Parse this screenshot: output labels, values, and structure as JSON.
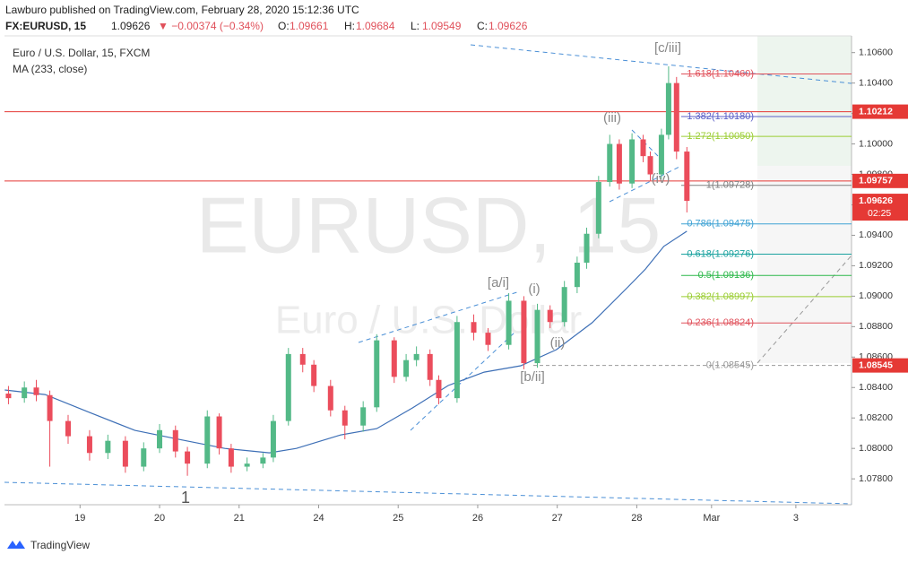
{
  "chart_data": {
    "type": "candlestick",
    "header": {
      "publisher": "Lawburo published on TradingView.com, February 28, 2020 15:12:36 UTC",
      "symbol": "FX:EURUSD, 15",
      "price": "1.09626",
      "change": "▼ −0.00374 (−0.34%)",
      "ohlc": [
        {
          "label": "O:",
          "value": "1.09661"
        },
        {
          "label": "H:",
          "value": "1.09684"
        },
        {
          "label": "L:",
          "value": "1.09549"
        },
        {
          "label": "C:",
          "value": "1.09626"
        }
      ]
    },
    "legend": [
      "Euro / U.S. Dollar, 15, FXCM",
      "MA (233, close)"
    ],
    "watermark": [
      "EURUSD, 15",
      "Euro / U.S. Dollar"
    ],
    "footer": "TradingView",
    "up_color": "#53b987",
    "down_color": "#eb4d5c",
    "x": [
      0.1,
      0.3,
      0.45,
      0.62,
      0.85,
      1.12,
      1.35,
      1.57,
      1.8,
      2.0,
      2.2,
      2.35,
      2.6,
      2.75,
      2.9,
      3.1,
      3.3,
      3.43,
      3.62,
      3.8,
      3.94,
      4.15,
      4.33,
      4.56,
      4.73,
      4.95,
      5.1,
      5.23,
      5.4,
      5.51,
      5.74,
      5.95,
      6.13,
      6.39,
      6.58,
      6.75,
      6.91,
      7.09,
      7.25,
      7.37,
      7.52,
      7.66,
      7.78,
      7.94,
      8.08,
      8.17,
      8.31,
      8.4,
      8.5,
      8.63
    ],
    "open": [
      1.0836,
      1.0833,
      1.084,
      1.0835,
      1.0818,
      1.0808,
      1.0797,
      1.0805,
      1.0788,
      1.08,
      1.0812,
      1.0798,
      1.079,
      1.0821,
      1.08,
      1.0788,
      1.079,
      1.0794,
      1.0818,
      1.0862,
      1.0855,
      1.0841,
      1.0825,
      1.0815,
      1.0827,
      1.0871,
      1.0847,
      1.0858,
      1.0862,
      1.0845,
      1.0833,
      1.0883,
      1.0876,
      1.0868,
      1.0897,
      1.0856,
      1.0891,
      1.0883,
      1.0906,
      1.0922,
      1.0941,
      1.0975,
      1.1,
      1.0974,
      1.1003,
      1.0992,
      1.098,
      1.1006,
      1.104,
      1.0995
    ],
    "high": [
      1.0841,
      1.0844,
      1.0845,
      1.0838,
      1.0822,
      1.0812,
      1.0809,
      1.0808,
      1.0804,
      1.0816,
      1.0815,
      1.0801,
      1.0825,
      1.0823,
      1.0803,
      1.0794,
      1.0797,
      1.0822,
      1.0866,
      1.0866,
      1.0858,
      1.0845,
      1.0828,
      1.0831,
      1.0875,
      1.0873,
      1.0862,
      1.0867,
      1.0865,
      1.0848,
      1.0887,
      1.0888,
      1.0879,
      1.0902,
      1.09,
      1.0895,
      1.0894,
      1.091,
      1.0926,
      1.0945,
      1.0979,
      1.1006,
      1.1003,
      1.1007,
      1.1006,
      1.0995,
      1.101,
      1.1051,
      1.1044,
      1.0998
    ],
    "low": [
      1.0829,
      1.083,
      1.0831,
      1.0788,
      1.0803,
      1.0792,
      1.0793,
      1.0784,
      1.0785,
      1.0797,
      1.0794,
      1.0782,
      1.0787,
      1.0796,
      1.0784,
      1.0785,
      1.0787,
      1.0791,
      1.0815,
      1.085,
      1.0837,
      1.0821,
      1.0806,
      1.0811,
      1.0824,
      1.0843,
      1.0844,
      1.0854,
      1.0841,
      1.0829,
      1.083,
      1.0871,
      1.0864,
      1.0865,
      1.0852,
      1.0853,
      1.0879,
      1.088,
      1.0902,
      1.0918,
      1.0938,
      1.0972,
      1.097,
      1.0971,
      1.0988,
      1.0976,
      1.0977,
      1.1003,
      1.099,
      1.0955
    ],
    "close": [
      1.0833,
      1.084,
      1.0835,
      1.0818,
      1.0808,
      1.0797,
      1.0805,
      1.0788,
      1.08,
      1.0812,
      1.0798,
      1.079,
      1.0821,
      1.08,
      1.0788,
      1.079,
      1.0794,
      1.0818,
      1.0862,
      1.0855,
      1.0841,
      1.0825,
      1.0815,
      1.0827,
      1.0871,
      1.0847,
      1.0858,
      1.0862,
      1.0845,
      1.0833,
      1.0883,
      1.0876,
      1.0868,
      1.0897,
      1.0856,
      1.0891,
      1.0883,
      1.0906,
      1.0922,
      1.0941,
      1.0975,
      1.1,
      1.0974,
      1.1003,
      1.0992,
      1.098,
      1.1006,
      1.104,
      1.0995,
      1.09626
    ],
    "ma": {
      "color": "#3d6fb6",
      "x": [
        0.053,
        0.56,
        1.12,
        1.69,
        2.25,
        2.82,
        3.38,
        3.72,
        4.28,
        4.73,
        5.18,
        5.63,
        6.08,
        6.54,
        6.99,
        7.44,
        7.89,
        8.11,
        8.34,
        8.63
      ],
      "values": [
        1.08384,
        1.08354,
        1.08236,
        1.08118,
        1.08059,
        1.08,
        1.07971,
        1.08,
        1.08089,
        1.0813,
        1.08266,
        1.08413,
        1.08501,
        1.08543,
        1.08649,
        1.08826,
        1.09061,
        1.09179,
        1.09327,
        1.09427
      ]
    },
    "fib_levels": [
      {
        "label": "1.618(1.10460)",
        "value": 1.1046,
        "color": "#e0505a"
      },
      {
        "label": "1.382(1.10180)",
        "value": 1.1018,
        "color": "#5b5fc7"
      },
      {
        "label": "1.272(1.10050)",
        "value": 1.1005,
        "color": "#9acd32"
      },
      {
        "label": "1(1.09728)",
        "value": 1.09728,
        "color": "#808080"
      },
      {
        "label": "0.786(1.09475)",
        "value": 1.09475,
        "color": "#3fa2d4"
      },
      {
        "label": "0.618(1.09276)",
        "value": 1.09276,
        "color": "#1ca3a0"
      },
      {
        "label": "0.5(1.09136)",
        "value": 1.09136,
        "color": "#2db84a"
      },
      {
        "label": "0.382(1.08997)",
        "value": 1.08997,
        "color": "#9acd32"
      },
      {
        "label": "0.236(1.08824)",
        "value": 1.08824,
        "color": "#e0505a"
      },
      {
        "label": "0(1.08545)",
        "value": 1.08545,
        "color": "#999999"
      }
    ],
    "price_lines": [
      {
        "value": 1.10212,
        "label": "1.10212"
      },
      {
        "value": 1.09757,
        "label": "1.09757"
      }
    ],
    "price_tags": [
      {
        "value": 1.09626,
        "label": "1.09626"
      },
      {
        "value": 1.08545,
        "label": "1.08545"
      }
    ],
    "countdown": "02:25",
    "annotations": [
      "[c/iii]",
      "(iii)",
      "(iv)",
      "[a/i]",
      "(i)",
      "(ii)",
      "[b/ii]",
      "1"
    ],
    "xlim": [
      0.05,
      10.7
    ],
    "ylim": [
      1.0763,
      1.1071
    ],
    "xticks": [
      {
        "value": 1,
        "label": "19"
      },
      {
        "value": 2,
        "label": "20"
      },
      {
        "value": 3,
        "label": "21"
      },
      {
        "value": 4,
        "label": "24"
      },
      {
        "value": 5,
        "label": "25"
      },
      {
        "value": 6,
        "label": "26"
      },
      {
        "value": 7,
        "label": "27"
      },
      {
        "value": 8,
        "label": "28"
      },
      {
        "value": 8.94,
        "label": "Mar"
      },
      {
        "value": 10,
        "label": "3"
      }
    ],
    "yticks": [
      {
        "value": 1.078,
        "label": "1.07800"
      },
      {
        "value": 1.08,
        "label": "1.08000"
      },
      {
        "value": 1.082,
        "label": "1.08200"
      },
      {
        "value": 1.084,
        "label": "1.08400"
      },
      {
        "value": 1.086,
        "label": "1.08600"
      },
      {
        "value": 1.088,
        "label": "1.08800"
      },
      {
        "value": 1.09,
        "label": "1.09000"
      },
      {
        "value": 1.092,
        "label": "1.09200"
      },
      {
        "value": 1.094,
        "label": "1.09400"
      },
      {
        "value": 1.096,
        "label": "1.09600"
      },
      {
        "value": 1.098,
        "label": "1.09800"
      },
      {
        "value": 1.1,
        "label": "1.10000"
      },
      {
        "value": 1.102,
        "label": "1.10200"
      },
      {
        "value": 1.104,
        "label": "1.10400"
      },
      {
        "value": 1.106,
        "label": "1.10600"
      }
    ],
    "grid": false
  }
}
